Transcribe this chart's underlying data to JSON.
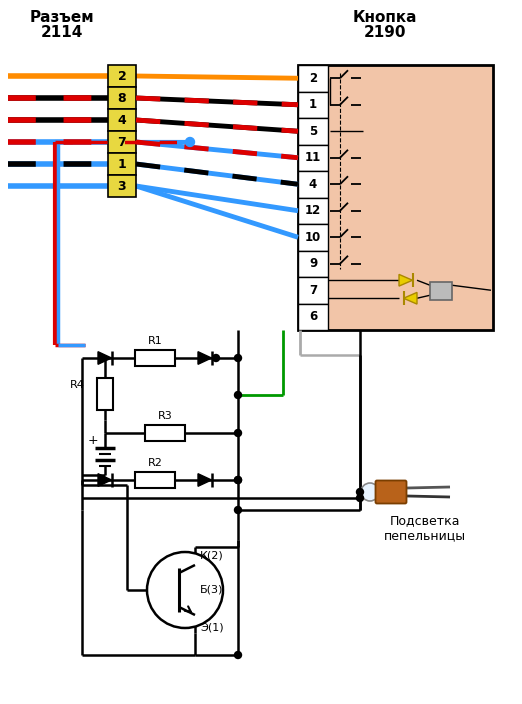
{
  "title_left": "Разъем\n2114",
  "title_right": "Кнопка\n2190",
  "connector_pins": [
    "2",
    "8",
    "4",
    "7",
    "1",
    "3"
  ],
  "button_pins": [
    "2",
    "1",
    "5",
    "11",
    "4",
    "12",
    "10",
    "9",
    "7",
    "6"
  ],
  "background_color": "#FFFFFF",
  "button_bg": "#F2C5A8",
  "connector_bg": "#E8D840",
  "label_r1": "R1",
  "label_r2": "R2",
  "label_r3": "R3",
  "label_r4": "R4",
  "label_k": "К(2)",
  "label_b": "Б(3)",
  "label_e": "Э(1)",
  "label_backlight": "Подсветка\nпепельницы",
  "orange": "#FF8C00",
  "red": "#DD0000",
  "blue": "#3399FF",
  "black": "#000000",
  "green": "#009900",
  "gray": "#AAAAAA",
  "yellow_led": "#E8D000"
}
